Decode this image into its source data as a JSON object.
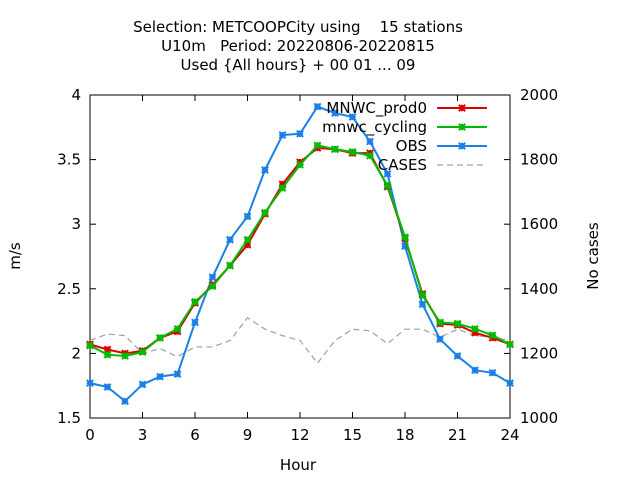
{
  "chart_data": {
    "type": "line",
    "title_lines": [
      "Selection: METCOOPCity using    15 stations",
      "U10m   Period: 20220806-20220815",
      "Used {All hours} + 00 01 ... 09"
    ],
    "xlabel": "Hour",
    "ylabel": "m/s",
    "y2label": "No cases",
    "xlim": [
      0,
      24
    ],
    "ylim": [
      1.5,
      4
    ],
    "y2lim": [
      1000,
      2000
    ],
    "x_ticks": [
      0,
      3,
      6,
      9,
      12,
      15,
      18,
      21,
      24
    ],
    "y_ticks": [
      "1.5",
      "2",
      "2.5",
      "3",
      "3.5",
      "4"
    ],
    "y2_ticks": [
      "1000",
      "1200",
      "1400",
      "1600",
      "1800",
      "2000"
    ],
    "legend_position": "top-right",
    "x": [
      0,
      1,
      2,
      3,
      4,
      5,
      6,
      7,
      8,
      9,
      10,
      11,
      12,
      13,
      14,
      15,
      16,
      17,
      18,
      19,
      20,
      21,
      22,
      23,
      24
    ],
    "series": [
      {
        "name": "MNWC_prod0",
        "color": "#dd0000",
        "marker": "star",
        "axis": "left",
        "values": [
          2.07,
          2.03,
          2.0,
          2.02,
          2.12,
          2.17,
          2.39,
          2.53,
          2.68,
          2.84,
          3.08,
          3.31,
          3.48,
          3.59,
          3.58,
          3.55,
          3.55,
          3.29,
          2.89,
          2.46,
          2.23,
          2.22,
          2.16,
          2.12,
          2.07
        ]
      },
      {
        "name": "mnwc_cycling",
        "color": "#00bb00",
        "marker": "star",
        "axis": "left",
        "values": [
          2.06,
          1.99,
          1.98,
          2.01,
          2.12,
          2.19,
          2.4,
          2.52,
          2.68,
          2.88,
          3.09,
          3.28,
          3.46,
          3.61,
          3.58,
          3.56,
          3.53,
          3.3,
          2.9,
          2.45,
          2.24,
          2.23,
          2.19,
          2.14,
          2.07
        ]
      },
      {
        "name": "OBS",
        "color": "#1a80e6",
        "marker": "star",
        "axis": "left",
        "values": [
          1.77,
          1.74,
          1.63,
          1.76,
          1.82,
          1.84,
          2.24,
          2.59,
          2.88,
          3.06,
          3.42,
          3.69,
          3.7,
          3.91,
          3.86,
          3.83,
          3.64,
          3.39,
          2.83,
          2.38,
          2.11,
          1.98,
          1.87,
          1.85,
          1.77
        ]
      },
      {
        "name": "CASES",
        "color": "#a0a0a0",
        "marker": "none",
        "dash": true,
        "axis": "right",
        "values": [
          1240,
          1260,
          1255,
          1200,
          1215,
          1190,
          1220,
          1220,
          1240,
          1310,
          1275,
          1255,
          1240,
          1170,
          1240,
          1275,
          1270,
          1230,
          1275,
          1275,
          1250,
          1275,
          1255,
          1250,
          1240
        ]
      }
    ]
  }
}
